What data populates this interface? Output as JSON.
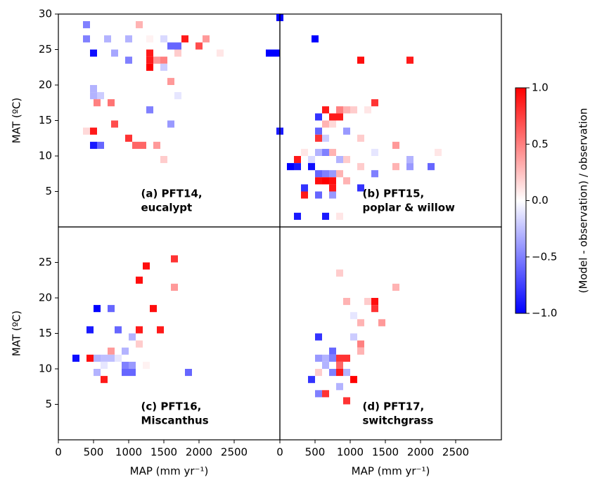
{
  "chart_data": [
    {
      "type": "heatmap",
      "annotation": [
        "(a) PFT14,",
        "eucalypt"
      ],
      "ylabel": "MAT (ºC)",
      "xlim": [
        0,
        3150
      ],
      "ylim": [
        0,
        30
      ],
      "yticks": [
        5,
        10,
        15,
        20,
        25,
        30
      ],
      "x": [
        400,
        1150,
        400,
        700,
        1000,
        1300,
        1500,
        1800,
        2100,
        1600,
        1700,
        2000,
        500,
        800,
        1300,
        1700,
        2300,
        3000,
        3100,
        1000,
        1300,
        1400,
        1500,
        1300,
        1500,
        1600,
        500,
        500,
        600,
        1700,
        550,
        750,
        1300,
        800,
        1600,
        400,
        500,
        1000,
        500,
        600,
        1100,
        1200,
        1400,
        1500
      ],
      "y": [
        28.5,
        28.5,
        26.5,
        26.5,
        26.5,
        26.5,
        26.5,
        26.5,
        26.5,
        25.5,
        25.5,
        25.5,
        24.5,
        24.5,
        24.5,
        24.5,
        24.5,
        24.5,
        24.5,
        23.5,
        23.5,
        23.5,
        23.5,
        22.5,
        22.5,
        20.5,
        19.5,
        18.5,
        18.5,
        18.5,
        17.5,
        17.5,
        16.5,
        14.5,
        14.5,
        13.5,
        13.5,
        12.5,
        11.5,
        11.5,
        11.5,
        11.5,
        11.5,
        9.5
      ],
      "values": [
        -0.5,
        0.3,
        -0.5,
        -0.3,
        -0.3,
        0.05,
        -0.15,
        0.9,
        0.4,
        -0.6,
        -0.6,
        0.7,
        -0.95,
        -0.35,
        0.9,
        0.2,
        0.1,
        -1,
        -1,
        -0.5,
        0.9,
        0.4,
        0.5,
        1,
        -0.2,
        0.4,
        -0.3,
        -0.3,
        -0.2,
        -0.1,
        0.5,
        0.55,
        -0.5,
        0.7,
        -0.4,
        0.15,
        0.9,
        0.8,
        -0.9,
        -0.6,
        0.6,
        0.6,
        0.4,
        0.2
      ]
    },
    {
      "type": "heatmap",
      "annotation": [
        "(b) PFT15,",
        "poplar & willow"
      ],
      "xlim": [
        0,
        3150
      ],
      "ylim": [
        0,
        30
      ],
      "x": [
        0,
        500,
        1150,
        1850,
        650,
        850,
        950,
        1050,
        1350,
        1250,
        750,
        850,
        550,
        650,
        750,
        950,
        550,
        0,
        550,
        650,
        1150,
        1350,
        1650,
        250,
        350,
        450,
        550,
        650,
        750,
        850,
        950,
        1850,
        2250,
        150,
        250,
        450,
        550,
        650,
        750,
        850,
        1150,
        1650,
        1850,
        2150,
        550,
        650,
        750,
        950,
        1350,
        350,
        750,
        1150,
        350,
        550,
        750,
        250,
        650,
        850
      ],
      "y": [
        29.5,
        26.5,
        23.5,
        23.5,
        16.5,
        16.5,
        16.5,
        16.5,
        17.5,
        16.5,
        15.5,
        15.5,
        15.5,
        14.5,
        14.5,
        13.5,
        13.5,
        13.5,
        12.5,
        12.5,
        12.5,
        10.5,
        11.5,
        9.5,
        10.5,
        9.5,
        10.5,
        10.5,
        10.5,
        9.5,
        9.5,
        9.5,
        10.5,
        8.5,
        8.5,
        8.5,
        7.5,
        7.5,
        7.5,
        7.5,
        8.5,
        8.5,
        8.5,
        8.5,
        6.5,
        6.5,
        6.5,
        6.5,
        7.5,
        5.5,
        5.5,
        5.5,
        4.5,
        4.5,
        4.5,
        1.5,
        1.5,
        1.5
      ],
      "values": [
        -1,
        -1,
        0.95,
        0.9,
        0.9,
        0.5,
        0.3,
        0.2,
        0.8,
        0.1,
        0.9,
        0.9,
        -0.8,
        0.3,
        0.15,
        -0.4,
        -0.6,
        -0.9,
        0.8,
        -0.2,
        0.2,
        -0.1,
        0.4,
        0.9,
        0.1,
        -0.15,
        -0.3,
        -0.5,
        0.3,
        -0.3,
        0.2,
        -0.3,
        0.1,
        -1,
        -0.9,
        -0.95,
        -0.6,
        -0.5,
        -0.4,
        0.3,
        0.2,
        0.3,
        -0.4,
        -0.6,
        0.95,
        1,
        0.95,
        0.3,
        -0.5,
        -0.8,
        0.9,
        -0.8,
        0.9,
        -0.6,
        -0.4,
        -0.9,
        -0.9,
        0.1
      ]
    },
    {
      "type": "heatmap",
      "annotation": [
        "(c) PFT16,",
        "Miscanthus"
      ],
      "ylabel": "MAT (ºC)",
      "xlabel": "MAP (mm yr⁻¹)",
      "xlim": [
        0,
        3150
      ],
      "ylim": [
        0,
        30
      ],
      "yticks": [
        5,
        10,
        15,
        20,
        25
      ],
      "xticks": [
        0,
        500,
        1000,
        1500,
        2000,
        2500
      ],
      "x": [
        1650,
        1250,
        1150,
        1650,
        550,
        750,
        1350,
        450,
        850,
        1150,
        1450,
        1050,
        1150,
        750,
        950,
        250,
        450,
        550,
        650,
        750,
        850,
        950,
        1050,
        650,
        1250,
        550,
        950,
        1050,
        1850,
        650
      ],
      "y": [
        25.5,
        24.5,
        22.5,
        21.5,
        18.5,
        18.5,
        18.5,
        15.5,
        15.5,
        15.5,
        15.5,
        14.5,
        13.5,
        12.5,
        12.5,
        11.5,
        11.5,
        11.5,
        11.5,
        11.5,
        11.5,
        10.5,
        10.5,
        10.5,
        10.5,
        9.5,
        9.5,
        9.5,
        9.5,
        8.5
      ],
      "values": [
        0.8,
        0.95,
        0.95,
        0.4,
        -1,
        -0.6,
        0.95,
        -0.9,
        -0.6,
        0.9,
        0.9,
        -0.3,
        0.2,
        0.4,
        -0.3,
        -0.95,
        0.95,
        -0.3,
        -0.25,
        -0.25,
        -0.1,
        -0.5,
        -0.4,
        -0.1,
        0.05,
        -0.3,
        -0.6,
        -0.6,
        -0.6,
        0.9
      ]
    },
    {
      "type": "heatmap",
      "annotation": [
        "(d) PFT17,",
        "switchgrass"
      ],
      "xlabel": "MAP (mm yr⁻¹)",
      "xlim": [
        0,
        3150
      ],
      "ylim": [
        0,
        30
      ],
      "xticks": [
        0,
        500,
        1000,
        1500,
        2000,
        2500
      ],
      "x": [
        850,
        950,
        1250,
        1350,
        1350,
        1050,
        1650,
        1450,
        1150,
        550,
        1050,
        1150,
        1150,
        750,
        650,
        750,
        850,
        950,
        550,
        650,
        850,
        750,
        850,
        950,
        1050,
        550,
        450,
        850,
        650,
        550,
        950
      ],
      "y": [
        23.5,
        19.5,
        19.5,
        19.5,
        18.5,
        17.5,
        21.5,
        16.5,
        16.5,
        14.5,
        14.5,
        13.5,
        12.5,
        12.5,
        11.5,
        11.5,
        11.5,
        11.5,
        11.5,
        10.5,
        10.5,
        9.5,
        9.5,
        9.5,
        8.5,
        9.5,
        8.5,
        7.5,
        6.5,
        6.5,
        5.5
      ],
      "values": [
        0.2,
        0.3,
        0.2,
        0.95,
        0.8,
        -0.1,
        0.3,
        0.4,
        0.3,
        -0.8,
        -0.2,
        0.5,
        0.3,
        -0.6,
        -0.3,
        -0.5,
        0.8,
        0.8,
        -0.4,
        -0.3,
        0.6,
        -0.5,
        0.9,
        -0.3,
        1,
        0.2,
        -0.8,
        -0.3,
        0.8,
        -0.5,
        0.8
      ]
    },
    {
      "type": "colorbar",
      "label": "(Model - observation) / observation",
      "lim": [
        -1,
        1
      ],
      "ticks": [
        {
          "value": -1,
          "label": "−1.0"
        },
        {
          "value": -0.5,
          "label": "−0.5"
        },
        {
          "value": 0,
          "label": "0.0"
        },
        0.5,
        {
          "value": 1,
          "label": "1.0"
        }
      ]
    }
  ]
}
